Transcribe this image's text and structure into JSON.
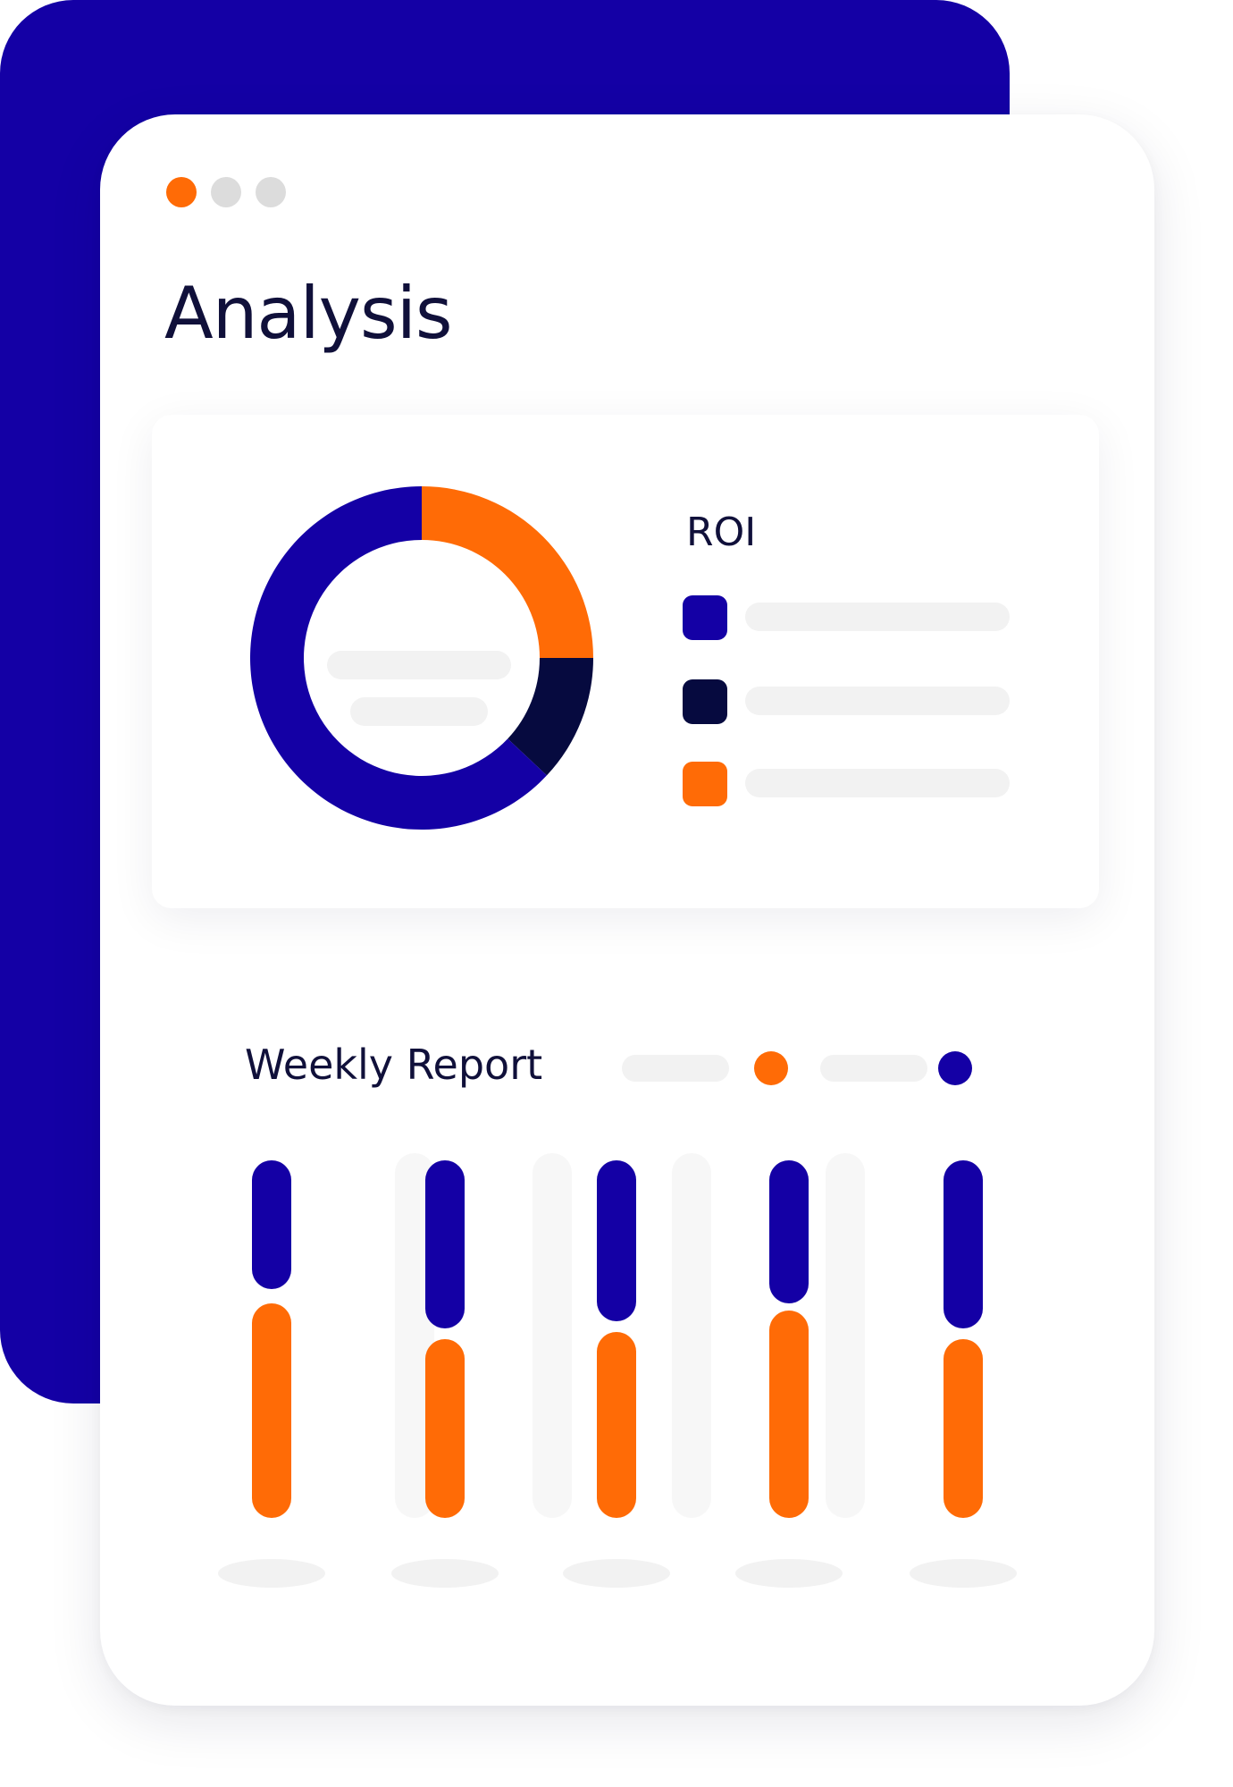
{
  "window": {
    "dots": [
      {
        "name": "window-dot-orange",
        "color": "#ff6b06"
      },
      {
        "name": "window-dot-gray",
        "color": "#dcdcdc"
      },
      {
        "name": "window-dot-gray",
        "color": "#dcdcdc"
      }
    ]
  },
  "header": {
    "title": "Analysis"
  },
  "colors": {
    "brand_blue": "#1400a5",
    "navy": "#060a3f",
    "orange": "#ff6b06",
    "placeholder": "#f2f2f2",
    "track": "#f7f7f7"
  },
  "roi": {
    "title": "ROI",
    "legend": [
      {
        "name": "legend-swatch-blue",
        "color": "#1400a5"
      },
      {
        "name": "legend-swatch-navy",
        "color": "#060a3f"
      },
      {
        "name": "legend-swatch-orange",
        "color": "#ff6b06"
      }
    ],
    "donut": [
      {
        "name": "donut-slice-orange",
        "color": "#ff6b06",
        "value": 25
      },
      {
        "name": "donut-slice-navy",
        "color": "#060a3f",
        "value": 12
      },
      {
        "name": "donut-slice-blue",
        "color": "#1400a5",
        "value": 63
      }
    ]
  },
  "weekly": {
    "title": "Weekly Report",
    "legend_dots": [
      {
        "name": "weekly-legend-orange-dot",
        "color": "#ff6b06"
      },
      {
        "name": "weekly-legend-blue-dot",
        "color": "#1400a5"
      }
    ],
    "series": [
      {
        "name": "blue",
        "color": "#1400a5",
        "values": [
          36,
          47,
          45,
          40,
          47
        ]
      },
      {
        "name": "orange",
        "color": "#ff6b06",
        "values": [
          60,
          50,
          52,
          58,
          50
        ]
      }
    ]
  }
}
